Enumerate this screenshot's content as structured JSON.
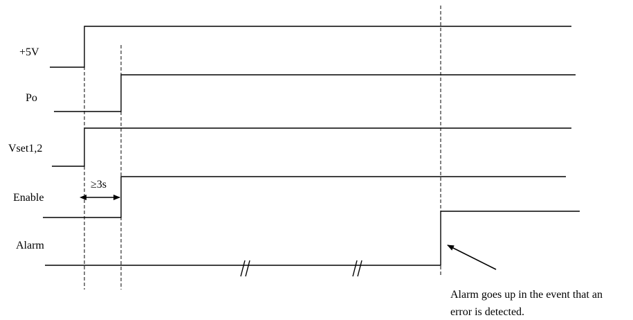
{
  "signals": [
    {
      "name": "+5V"
    },
    {
      "name": "Po"
    },
    {
      "name": "Vset1,2"
    },
    {
      "name": "Enable"
    },
    {
      "name": "Alarm"
    }
  ],
  "timing": {
    "delay_label": "≥3s"
  },
  "annotation": {
    "line1": "Alarm goes up in the event that an",
    "line2": "error is detected."
  },
  "break_marks": [
    "//",
    "//"
  ]
}
